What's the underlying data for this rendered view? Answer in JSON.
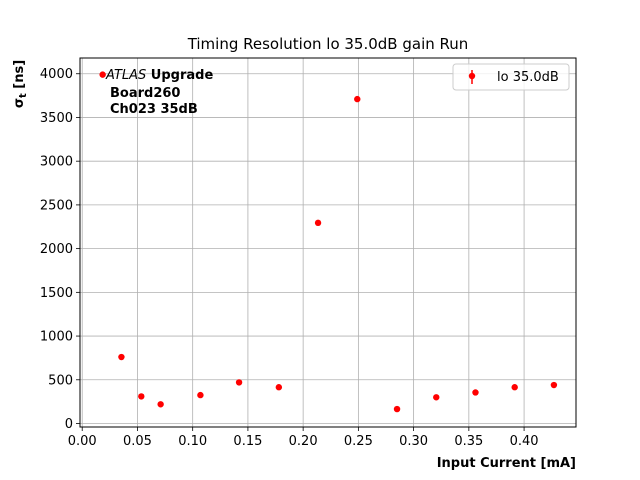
{
  "chart_data": {
    "type": "scatter",
    "title": "Timing Resolution lo 35.0dB gain Run",
    "xlabel": "Input Current [mA]",
    "ylabel_main": "σ",
    "ylabel_sub": "t",
    "ylabel_unit": " [ns]",
    "xlim": [
      -0.002,
      0.447
    ],
    "ylim": [
      -40,
      4180
    ],
    "xticks": [
      0.0,
      0.05,
      0.1,
      0.15,
      0.2,
      0.25,
      0.3,
      0.35,
      0.4
    ],
    "xtick_labels": [
      "0.00",
      "0.05",
      "0.10",
      "0.15",
      "0.20",
      "0.25",
      "0.30",
      "0.35",
      "0.40"
    ],
    "yticks": [
      0,
      500,
      1000,
      1500,
      2000,
      2500,
      3000,
      3500,
      4000
    ],
    "ytick_labels": [
      "0",
      "500",
      "1000",
      "1500",
      "2000",
      "2500",
      "3000",
      "3500",
      "4000"
    ],
    "grid": true,
    "legend_position": "top-right",
    "annotation": {
      "line1_italic": "ATLAS",
      "line1_bold": " Upgrade",
      "line2": "Board260",
      "line3": "Ch023 35dB"
    },
    "series": [
      {
        "name": "lo 35.0dB",
        "color": "#ff0000",
        "points": [
          {
            "x": 0.0185,
            "y": 3990
          },
          {
            "x": 0.0355,
            "y": 760
          },
          {
            "x": 0.0535,
            "y": 310
          },
          {
            "x": 0.071,
            "y": 220
          },
          {
            "x": 0.107,
            "y": 325
          },
          {
            "x": 0.142,
            "y": 470
          },
          {
            "x": 0.178,
            "y": 415
          },
          {
            "x": 0.2135,
            "y": 2295
          },
          {
            "x": 0.249,
            "y": 3710
          },
          {
            "x": 0.285,
            "y": 165
          },
          {
            "x": 0.3205,
            "y": 300
          },
          {
            "x": 0.356,
            "y": 355
          },
          {
            "x": 0.3915,
            "y": 415
          },
          {
            "x": 0.427,
            "y": 440
          }
        ]
      }
    ]
  }
}
